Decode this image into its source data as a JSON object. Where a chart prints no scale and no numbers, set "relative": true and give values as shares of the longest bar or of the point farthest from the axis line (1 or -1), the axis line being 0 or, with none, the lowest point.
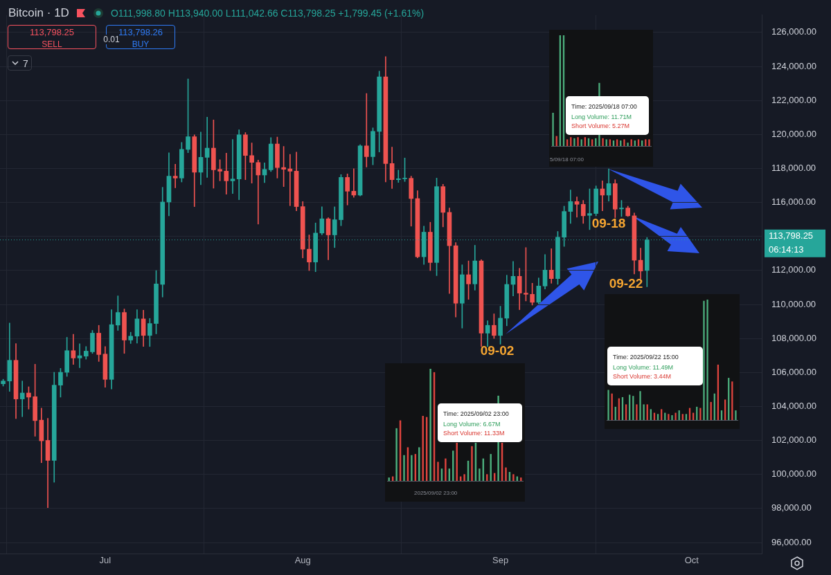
{
  "chart_data": [
    {
      "type": "candlestick",
      "title": "Bitcoin · 1D",
      "subtitle": "O111,998.80 H113,940.00 L111,042.66 C113,798.25 +1,799.45 (+1.61%)",
      "x": [
        "2025-06-15",
        "2025-06-16",
        "2025-06-17",
        "2025-06-18",
        "2025-06-19",
        "2025-06-20",
        "2025-06-21",
        "2025-06-22",
        "2025-06-23",
        "2025-06-24",
        "2025-06-25",
        "2025-06-26",
        "2025-06-27",
        "2025-06-28",
        "2025-06-29",
        "2025-06-30",
        "2025-07-01",
        "2025-07-02",
        "2025-07-03",
        "2025-07-04",
        "2025-07-05",
        "2025-07-06",
        "2025-07-07",
        "2025-07-08",
        "2025-07-09",
        "2025-07-10",
        "2025-07-11",
        "2025-07-12",
        "2025-07-13",
        "2025-07-14",
        "2025-07-15",
        "2025-07-16",
        "2025-07-17",
        "2025-07-18",
        "2025-07-19",
        "2025-07-20",
        "2025-07-21",
        "2025-07-22",
        "2025-07-23",
        "2025-07-24",
        "2025-07-25",
        "2025-07-26",
        "2025-07-27",
        "2025-07-28",
        "2025-07-29",
        "2025-07-30",
        "2025-07-31",
        "2025-08-01",
        "2025-08-02",
        "2025-08-03",
        "2025-08-04",
        "2025-08-05",
        "2025-08-06",
        "2025-08-07",
        "2025-08-08",
        "2025-08-09",
        "2025-08-10",
        "2025-08-11",
        "2025-08-12",
        "2025-08-13",
        "2025-08-14",
        "2025-08-15",
        "2025-08-16",
        "2025-08-17",
        "2025-08-18",
        "2025-08-19",
        "2025-08-20",
        "2025-08-21",
        "2025-08-22",
        "2025-08-23",
        "2025-08-24",
        "2025-08-25",
        "2025-08-26",
        "2025-08-27",
        "2025-08-28",
        "2025-08-29",
        "2025-08-30",
        "2025-08-31",
        "2025-09-01",
        "2025-09-02",
        "2025-09-03",
        "2025-09-04",
        "2025-09-05",
        "2025-09-06",
        "2025-09-07",
        "2025-09-08",
        "2025-09-09",
        "2025-09-10",
        "2025-09-11",
        "2025-09-12",
        "2025-09-13",
        "2025-09-14",
        "2025-09-15",
        "2025-09-16",
        "2025-09-17",
        "2025-09-18",
        "2025-09-19",
        "2025-09-20",
        "2025-09-21",
        "2025-09-22",
        "2025-09-23",
        "2025-09-24"
      ],
      "ohlc": [
        [
          105335,
          105600,
          105200,
          105497
        ],
        [
          105497,
          108908,
          104888,
          106715
        ],
        [
          106715,
          107703,
          103291,
          104441
        ],
        [
          104441,
          105497,
          103400,
          104793
        ],
        [
          104793,
          105159,
          103846,
          104550
        ],
        [
          104577,
          106485,
          102249,
          103169
        ],
        [
          103196,
          103900,
          100693,
          101979
        ],
        [
          102006,
          103305,
          98054,
          100828
        ],
        [
          100828,
          106012,
          99543,
          105254
        ],
        [
          105254,
          106241,
          104550,
          106011
        ],
        [
          106011,
          108068,
          105768,
          107284
        ],
        [
          107284,
          108244,
          106472,
          106850
        ],
        [
          106850,
          107690,
          106282,
          106986
        ],
        [
          106959,
          107527,
          106783,
          107257
        ],
        [
          107216,
          108475,
          107121,
          108312
        ],
        [
          108312,
          108772,
          106648,
          107054
        ],
        [
          107081,
          107527,
          105132,
          105592
        ],
        [
          105592,
          109692,
          105024,
          108813
        ],
        [
          108786,
          110505,
          108475,
          109530
        ],
        [
          109530,
          109733,
          107121,
          107906
        ],
        [
          107906,
          108366,
          107703,
          108136
        ],
        [
          108136,
          109692,
          107730,
          109151
        ],
        [
          109151,
          109666,
          107527,
          108177
        ],
        [
          108177,
          109178,
          107527,
          108880
        ],
        [
          108880,
          111993,
          108272,
          111208
        ],
        [
          111181,
          116892,
          110437,
          116026
        ],
        [
          116026,
          118922,
          115214,
          117542
        ],
        [
          117542,
          118246,
          116865,
          117434
        ],
        [
          117434,
          119531,
          117204,
          119125
        ],
        [
          119125,
          123266,
          118922,
          119870
        ],
        [
          119870,
          119978,
          115756,
          117772
        ],
        [
          117772,
          120140,
          117041,
          118652
        ],
        [
          118652,
          121020,
          117474,
          119193
        ],
        [
          119193,
          120857,
          116838,
          117921
        ],
        [
          117948,
          118516,
          117271,
          117840
        ],
        [
          117840,
          118895,
          116486,
          117271
        ],
        [
          117271,
          119707,
          116527,
          117379
        ],
        [
          117379,
          120275,
          116162,
          119978
        ],
        [
          119978,
          120113,
          117339,
          118760
        ],
        [
          118760,
          119504,
          117136,
          118354
        ],
        [
          118354,
          118489,
          114727,
          117610
        ],
        [
          117610,
          118327,
          117163,
          117948
        ],
        [
          117921,
          119815,
          117813,
          119436
        ],
        [
          119436,
          119842,
          117434,
          118056
        ],
        [
          118056,
          119301,
          116933,
          117948
        ],
        [
          117975,
          118827,
          115810,
          117840
        ],
        [
          117840,
          118963,
          115512,
          115756
        ],
        [
          115756,
          116053,
          112738,
          113252
        ],
        [
          113252,
          114091,
          111993,
          112494
        ],
        [
          112494,
          114795,
          111926,
          114199
        ],
        [
          114199,
          115742,
          114091,
          115038
        ],
        [
          115038,
          115106,
          112629,
          114091
        ],
        [
          114091,
          115742,
          113347,
          114984
        ],
        [
          114984,
          117637,
          114632,
          117474
        ],
        [
          117474,
          117677,
          115850,
          116662
        ],
        [
          116662,
          117989,
          116297,
          116432
        ],
        [
          116432,
          119400,
          116380,
          119328
        ],
        [
          119328,
          122414,
          118083,
          118692
        ],
        [
          118692,
          120384,
          118219,
          120181
        ],
        [
          120181,
          123726,
          118963,
          123388
        ],
        [
          123388,
          124579,
          117204,
          118286
        ],
        [
          118286,
          119260,
          116825,
          117339
        ],
        [
          117339,
          117907,
          117177,
          117393
        ],
        [
          117393,
          118611,
          117231,
          117420
        ],
        [
          117420,
          117542,
          114605,
          116229
        ],
        [
          116229,
          116689,
          112738,
          112805
        ],
        [
          112805,
          114605,
          112359,
          114253
        ],
        [
          114253,
          114835,
          111993,
          112467
        ],
        [
          112467,
          117433,
          111695,
          116933
        ],
        [
          116933,
          117068,
          114564,
          115417
        ],
        [
          115417,
          115674,
          110640,
          113455
        ],
        [
          113455,
          113644,
          109260,
          110072
        ],
        [
          110072,
          112331,
          108610,
          111750
        ],
        [
          111750,
          112561,
          110301,
          111208
        ],
        [
          111208,
          113482,
          110843,
          112561
        ],
        [
          112561,
          112629,
          107527,
          108312
        ],
        [
          108312,
          109043,
          107527,
          108772
        ],
        [
          108772,
          109449,
          108001,
          108177
        ],
        [
          108177,
          109896,
          107663,
          109192
        ],
        [
          109192,
          111722,
          108745,
          111181
        ],
        [
          111181,
          112534,
          110505,
          111655
        ],
        [
          111655,
          112129,
          109693,
          110667
        ],
        [
          110667,
          113347,
          110207,
          110599
        ],
        [
          110599,
          111249,
          109963,
          110126
        ],
        [
          110126,
          111560,
          110031,
          111086
        ],
        [
          111086,
          112941,
          110911,
          112020
        ],
        [
          112020,
          113279,
          111249,
          111519
        ],
        [
          111519,
          114294,
          111181,
          113955
        ],
        [
          113955,
          115782,
          113414,
          115471
        ],
        [
          115471,
          116730,
          114767,
          116053
        ],
        [
          116053,
          116324,
          115133,
          115891
        ],
        [
          115891,
          116121,
          114767,
          115214
        ],
        [
          115241,
          116797,
          114402,
          115349
        ],
        [
          115349,
          116973,
          115214,
          116797
        ],
        [
          116797,
          117271,
          115512,
          116432
        ],
        [
          116432,
          117975,
          116080,
          117109
        ],
        [
          117109,
          117339,
          115106,
          115606
        ],
        [
          115620,
          116121,
          115174,
          115674
        ],
        [
          115674,
          115782,
          115174,
          115214
        ],
        [
          115214,
          115376,
          111790,
          112602
        ],
        [
          112602,
          113319,
          111519,
          111966
        ],
        [
          111998.8,
          113940,
          111042.66,
          113798.25
        ]
      ],
      "colors": [
        "#26a69a",
        "#26a69a",
        "#ef5350",
        "#26a69a",
        "#ef5350",
        "#ef5350",
        "#ef5350",
        "#ef5350",
        "#26a69a",
        "#26a69a",
        "#26a69a",
        "#ef5350",
        "#26a69a",
        "#26a69a",
        "#26a69a",
        "#ef5350",
        "#ef5350",
        "#26a69a",
        "#26a69a",
        "#ef5350",
        "#26a69a",
        "#26a69a",
        "#ef5350",
        "#26a69a",
        "#26a69a",
        "#26a69a",
        "#26a69a",
        "#ef5350",
        "#26a69a",
        "#26a69a",
        "#ef5350",
        "#26a69a",
        "#26a69a",
        "#ef5350",
        "#ef5350",
        "#ef5350",
        "#26a69a",
        "#26a69a",
        "#ef5350",
        "#ef5350",
        "#ef5350",
        "#26a69a",
        "#26a69a",
        "#ef5350",
        "#ef5350",
        "#ef5350",
        "#ef5350",
        "#ef5350",
        "#ef5350",
        "#26a69a",
        "#26a69a",
        "#ef5350",
        "#26a69a",
        "#26a69a",
        "#ef5350",
        "#ef5350",
        "#26a69a",
        "#ef5350",
        "#26a69a",
        "#26a69a",
        "#ef5350",
        "#ef5350",
        "#26a69a",
        "#26a69a",
        "#ef5350",
        "#ef5350",
        "#26a69a",
        "#ef5350",
        "#26a69a",
        "#ef5350",
        "#ef5350",
        "#ef5350",
        "#26a69a",
        "#ef5350",
        "#26a69a",
        "#ef5350",
        "#26a69a",
        "#ef5350",
        "#26a69a",
        "#26a69a",
        "#26a69a",
        "#ef5350",
        "#ef5350",
        "#ef5350",
        "#26a69a",
        "#26a69a",
        "#ef5350",
        "#26a69a",
        "#26a69a",
        "#26a69a",
        "#ef5350",
        "#ef5350",
        "#26a69a",
        "#26a69a",
        "#ef5350",
        "#26a69a",
        "#ef5350",
        "#26a69a",
        "#ef5350",
        "#ef5350",
        "#ef5350",
        "#26a69a"
      ],
      "xlim": [
        "2025-06-14T12:00",
        "2025-10-12"
      ],
      "ylim": [
        95350,
        127020
      ],
      "xticks": [
        {
          "value": "2025-07-01",
          "label": "Jul"
        },
        {
          "value": "2025-08-01",
          "label": "Aug"
        },
        {
          "value": "2025-09-01",
          "label": "Sep"
        },
        {
          "value": "2025-10-01",
          "label": "Oct"
        }
      ],
      "yticks": [
        {
          "value": 96000,
          "label": "96,000.00"
        },
        {
          "value": 98000,
          "label": "98,000.00"
        },
        {
          "value": 100000,
          "label": "100,000.00"
        },
        {
          "value": 102000,
          "label": "102,000.00"
        },
        {
          "value": 104000,
          "label": "104,000.00"
        },
        {
          "value": 106000,
          "label": "106,000.00"
        },
        {
          "value": 108000,
          "label": "108,000.00"
        },
        {
          "value": 110000,
          "label": "110,000.00"
        },
        {
          "value": 112000,
          "label": "112,000.00"
        },
        {
          "value": 114000,
          "label": null
        },
        {
          "value": 116000,
          "label": "116,000.00"
        },
        {
          "value": 118000,
          "label": "118,000.00"
        },
        {
          "value": 120000,
          "label": "120,000.00"
        },
        {
          "value": 122000,
          "label": "122,000.00"
        },
        {
          "value": 124000,
          "label": "124,000.00"
        },
        {
          "value": 126000,
          "label": "126,000.00"
        }
      ],
      "grid": true,
      "legend": false,
      "ref_lines": [
        {
          "axis": "y",
          "value": 113798.25,
          "label": "113,798.25",
          "color": "#26a69a",
          "line_style": "dotted"
        }
      ],
      "annotations": [
        "113,798.25",
        "SELL",
        "0.01",
        "113,798.26",
        "BUY",
        "7",
        "06:14:13",
        "09-02",
        "09-18",
        "09-22"
      ]
    },
    {
      "type": "bar",
      "relative": true,
      "categories": [
        null,
        null,
        null,
        null,
        null,
        null,
        null,
        null,
        null,
        null,
        null,
        null,
        null,
        null,
        null,
        null,
        null,
        null,
        null,
        null,
        null,
        null,
        null,
        null,
        null,
        null,
        null,
        null,
        null,
        null,
        null,
        null,
        null,
        null,
        null,
        null
      ],
      "values": [
        0.03,
        0.04,
        0.47,
        0.54,
        0.23,
        0.3,
        0.23,
        0.24,
        0.3,
        0.58,
        0.57,
        1.0,
        0.97,
        0.17,
        0.11,
        0.2,
        0.11,
        0.27,
        0.34,
        0.04,
        0.06,
        0.18,
        0.31,
        0.34,
        0.11,
        0.2,
        0.06,
        0.24,
        0.07,
        0.76,
        0.34,
        0.12,
        0.08,
        0.06,
        0.04,
        0.03
      ],
      "colors": [
        "#4caf7d",
        "#e0443e",
        "#4caf7d",
        "#e0443e",
        "#4caf7d",
        "#e0443e",
        "#4caf7d",
        "#e0443e",
        "#4caf7d",
        "#e0443e",
        "#e0443e",
        "#4caf7d",
        "#e0443e",
        "#e0443e",
        "#4caf7d",
        "#e0443e",
        "#4caf7d",
        "#4caf7d",
        "#e0443e",
        "#e0443e",
        "#e0443e",
        "#4caf7d",
        "#e0443e",
        "#4caf7d",
        "#4caf7d",
        "#4caf7d",
        "#e0443e",
        "#4caf7d",
        "#e0443e",
        "#4caf7d",
        "#e0443e",
        "#e0443e",
        "#4caf7d",
        "#e0443e",
        "#4caf7d",
        "#e0443e"
      ],
      "annotations": [
        "Time: 2025/09/02 23:00",
        "Long Volume: 6.67M",
        "Short Volume: 11.33M",
        "2025/09/02 23:00"
      ]
    },
    {
      "type": "bar",
      "relative": true,
      "categories": [
        null,
        null,
        null,
        null,
        null,
        null,
        null,
        null,
        null,
        null,
        null,
        null,
        null,
        null,
        null,
        null,
        null,
        null,
        null,
        null,
        null,
        null,
        null,
        null,
        null,
        null,
        null,
        null
      ],
      "values": [
        0.3,
        0.09,
        1.0,
        1.0,
        0.06,
        0.08,
        0.07,
        0.08,
        0.06,
        0.08,
        0.07,
        0.06,
        0.07,
        0.57,
        0.07,
        0.06,
        0.06,
        0.05,
        0.06,
        0.05,
        0.06,
        0.03,
        0.06,
        0.05,
        0.06,
        0.05,
        0.06,
        0.06
      ],
      "colors": [
        "#4caf7d",
        "#e0443e",
        "#4caf7d",
        "#4caf7d",
        "#e0443e",
        "#e0443e",
        "#4caf7d",
        "#e0443e",
        "#4caf7d",
        "#e0443e",
        "#4caf7d",
        "#e0443e",
        "#4caf7d",
        "#4caf7d",
        "#e0443e",
        "#4caf7d",
        "#e0443e",
        "#4caf7d",
        "#e0443e",
        "#4caf7d",
        "#e0443e",
        "#4caf7d",
        "#e0443e",
        "#4caf7d",
        "#e0443e",
        "#4caf7d",
        "#e0443e",
        "#e0443e"
      ],
      "annotations": [
        "Time: 2025/09/18 07:00",
        "Long Volume: 11.71M",
        "Short Volume: 5.27M",
        "5/09/18 07:00"
      ]
    },
    {
      "type": "bar",
      "relative": true,
      "categories": [
        null,
        null,
        null,
        null,
        null,
        null,
        null,
        null,
        null,
        null,
        null,
        null,
        null,
        null,
        null,
        null,
        null,
        null,
        null,
        null,
        null,
        null,
        null,
        null,
        null,
        null,
        null,
        null,
        null,
        null,
        null,
        null,
        null,
        null,
        null,
        null,
        null
      ],
      "values": [
        0.25,
        0.22,
        0.11,
        0.18,
        0.19,
        0.13,
        0.21,
        0.2,
        0.13,
        0.24,
        0.13,
        0.13,
        0.09,
        0.06,
        0.05,
        0.09,
        0.06,
        0.05,
        0.04,
        0.06,
        0.08,
        0.05,
        0.05,
        0.1,
        0.06,
        0.11,
        0.1,
        0.99,
        1.0,
        0.15,
        0.22,
        0.46,
        0.08,
        0.17,
        0.35,
        0.32,
        0.08
      ],
      "colors": [
        "#4caf7d",
        "#e0443e",
        "#4caf7d",
        "#e0443e",
        "#4caf7d",
        "#e0443e",
        "#4caf7d",
        "#4caf7d",
        "#e0443e",
        "#4caf7d",
        "#4caf7d",
        "#e0443e",
        "#4caf7d",
        "#e0443e",
        "#4caf7d",
        "#e0443e",
        "#4caf7d",
        "#e0443e",
        "#4caf7d",
        "#e0443e",
        "#4caf7d",
        "#e0443e",
        "#4caf7d",
        "#e0443e",
        "#e0443e",
        "#4caf7d",
        "#e0443e",
        "#4caf7d",
        "#4caf7d",
        "#e0443e",
        "#4caf7d",
        "#e0443e",
        "#4caf7d",
        "#e0443e",
        "#4caf7d",
        "#e0443e",
        "#4caf7d"
      ],
      "annotations": [
        "Time: 2025/09/22 15:00",
        "Long Volume: 11.49M",
        "Short Volume: 3.44M"
      ]
    }
  ]
}
